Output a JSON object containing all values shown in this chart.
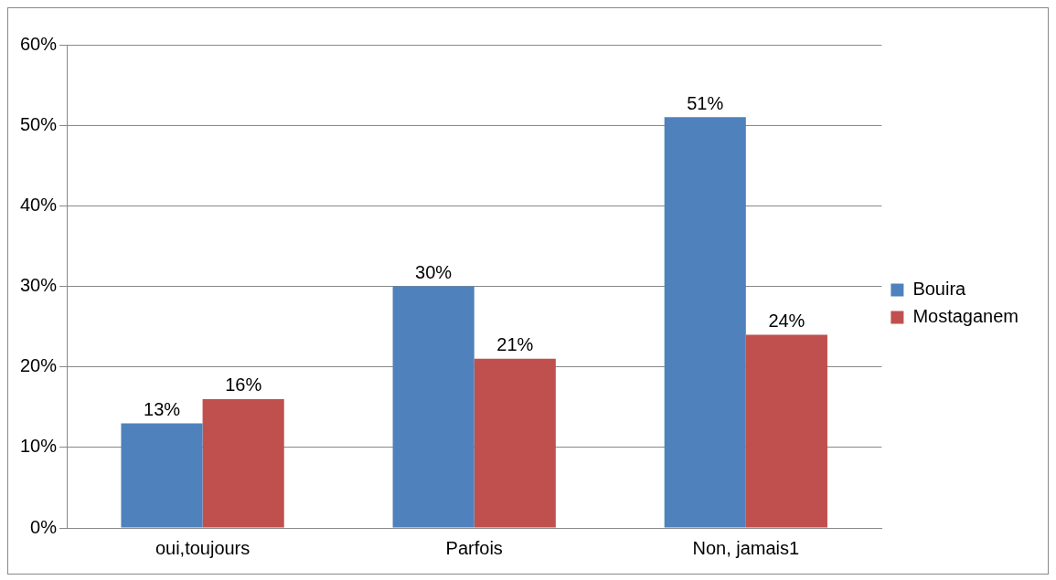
{
  "chart_data": {
    "type": "bar",
    "categories": [
      "oui,toujours",
      "Parfois",
      "Non, jamais1"
    ],
    "series": [
      {
        "name": "Bouira",
        "color": "#4f81bd",
        "values": [
          13,
          30,
          51
        ],
        "value_labels": [
          "13%",
          "30%",
          "51%"
        ]
      },
      {
        "name": "Mostaganem",
        "color": "#c0504d",
        "values": [
          16,
          21,
          24
        ],
        "value_labels": [
          "16%",
          "21%",
          "24%"
        ]
      }
    ],
    "ylim": [
      0,
      60
    ],
    "yticks": [
      {
        "value": 0,
        "label": "0%"
      },
      {
        "value": 10,
        "label": "10%"
      },
      {
        "value": 20,
        "label": "20%"
      },
      {
        "value": 30,
        "label": "30%"
      },
      {
        "value": 40,
        "label": "40%"
      },
      {
        "value": 50,
        "label": "50%"
      },
      {
        "value": 60,
        "label": "60%"
      }
    ],
    "grid": "y",
    "legend": "right"
  }
}
